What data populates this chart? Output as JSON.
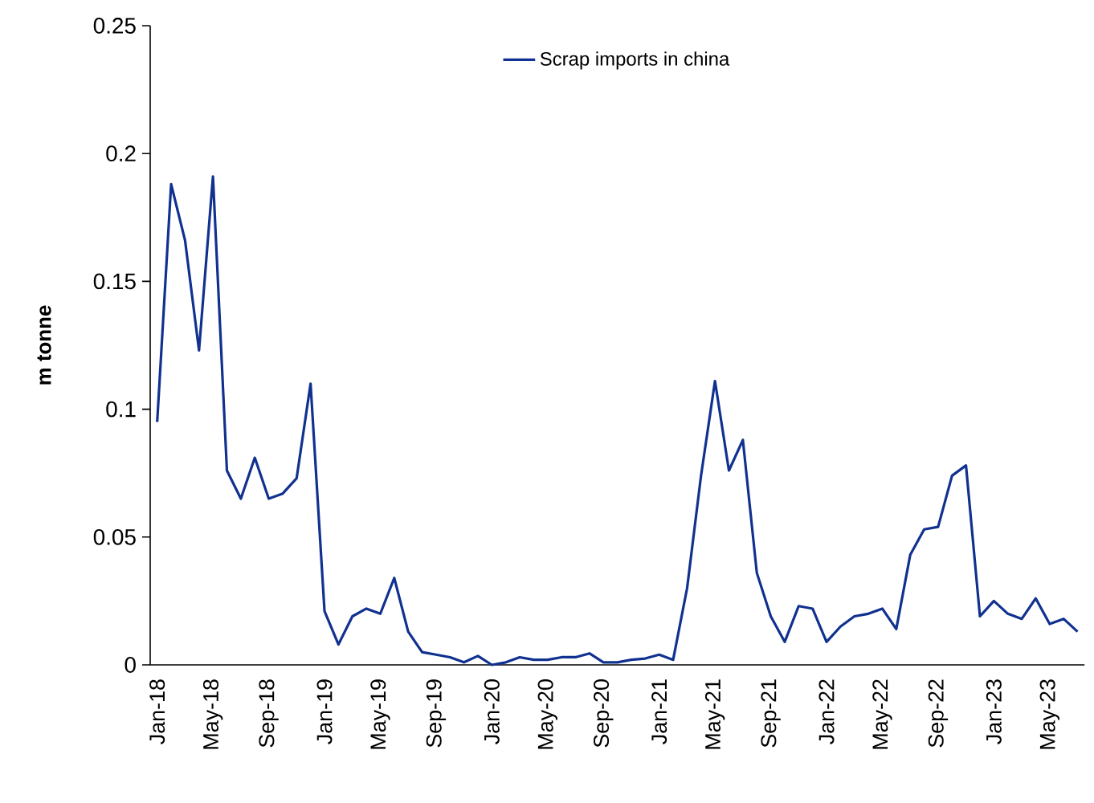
{
  "chart_data": {
    "type": "line",
    "ylabel": "m tonne",
    "categories": [
      "Jan-18",
      null,
      null,
      null,
      "May-18",
      null,
      null,
      null,
      "Sep-18",
      null,
      null,
      null,
      "Jan-19",
      null,
      null,
      null,
      "May-19",
      null,
      null,
      null,
      "Sep-19",
      null,
      null,
      null,
      "Jan-20",
      null,
      null,
      null,
      "May-20",
      null,
      null,
      null,
      "Sep-20",
      null,
      null,
      null,
      "Jan-21",
      null,
      null,
      null,
      "May-21",
      null,
      null,
      null,
      "Sep-21",
      null,
      null,
      null,
      "Jan-22",
      null,
      null,
      null,
      "May-22",
      null,
      null,
      null,
      "Sep-22",
      null,
      null,
      null,
      "Jan-23",
      null,
      null,
      null,
      "May-23",
      null,
      null
    ],
    "series": [
      {
        "name": "Scrap imports in china",
        "color": "#10318f",
        "values": [
          0.095,
          0.188,
          0.166,
          0.123,
          0.191,
          0.076,
          0.065,
          0.081,
          0.065,
          0.067,
          0.073,
          0.11,
          0.021,
          0.008,
          0.019,
          0.022,
          0.02,
          0.034,
          0.013,
          0.005,
          0.004,
          0.003,
          0.001,
          0.0035,
          0.0,
          0.001,
          0.003,
          0.002,
          0.002,
          0.003,
          0.003,
          0.0045,
          0.001,
          0.001,
          0.002,
          0.0025,
          0.004,
          0.002,
          0.03,
          0.074,
          0.111,
          0.076,
          0.088,
          0.036,
          0.019,
          0.009,
          0.023,
          0.022,
          0.009,
          0.015,
          0.019,
          0.02,
          0.022,
          0.014,
          0.043,
          0.053,
          0.054,
          0.074,
          0.078,
          0.019,
          0.025,
          0.02,
          0.018,
          0.026,
          0.016,
          0.018,
          0.013
        ]
      }
    ],
    "ylim": [
      0,
      0.25
    ],
    "yticks": [
      0,
      0.05,
      0.1,
      0.15,
      0.2,
      0.25
    ],
    "legend": "top",
    "grid": false,
    "line_style": "solid",
    "marker": "none"
  }
}
